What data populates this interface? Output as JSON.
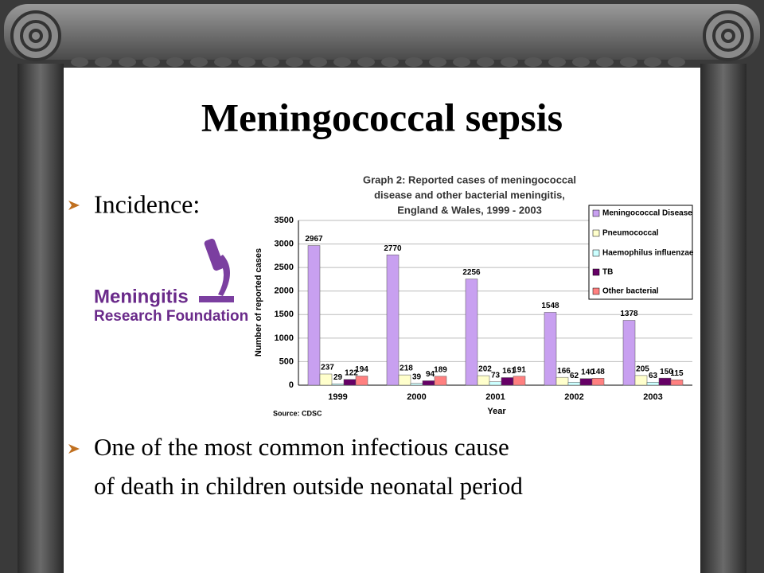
{
  "slide": {
    "title": "Meningococcal sepsis",
    "bullets": [
      [
        "Incidence:"
      ],
      [
        "One of the most common infectious cause",
        "of death in children outside neonatal period"
      ]
    ],
    "logo": [
      "Meningitis",
      "Research Foundation"
    ]
  },
  "chart_data": {
    "type": "bar",
    "title": [
      "Graph 2: Reported cases of meningococcal",
      "disease and other bacterial meningitis,",
      "England & Wales, 1999 - 2003"
    ],
    "x_label": "Year",
    "y_label": "Number of reported cases",
    "source": "Source: CDSC",
    "categories": [
      "1999",
      "2000",
      "2001",
      "2002",
      "2003"
    ],
    "series": [
      {
        "name": "Meningococcal Disease",
        "color": "#c8a0f0",
        "values": [
          2967,
          2770,
          2256,
          1548,
          1378
        ]
      },
      {
        "name": "Pneumococcal",
        "color": "#ffffcc",
        "values": [
          237,
          218,
          202,
          166,
          205
        ]
      },
      {
        "name": "Haemophilus influenzae",
        "color": "#ccffff",
        "values": [
          29,
          39,
          73,
          62,
          63
        ]
      },
      {
        "name": "TB",
        "color": "#660066",
        "values": [
          122,
          94,
          161,
          140,
          150
        ]
      },
      {
        "name": "Other bacterial",
        "color": "#ff8080",
        "values": [
          194,
          189,
          191,
          148,
          115
        ]
      }
    ],
    "ylim": [
      0,
      3500
    ],
    "yticks": [
      0,
      500,
      1000,
      1500,
      2000,
      2500,
      3000,
      3500
    ],
    "grid": true,
    "legend": "right"
  }
}
